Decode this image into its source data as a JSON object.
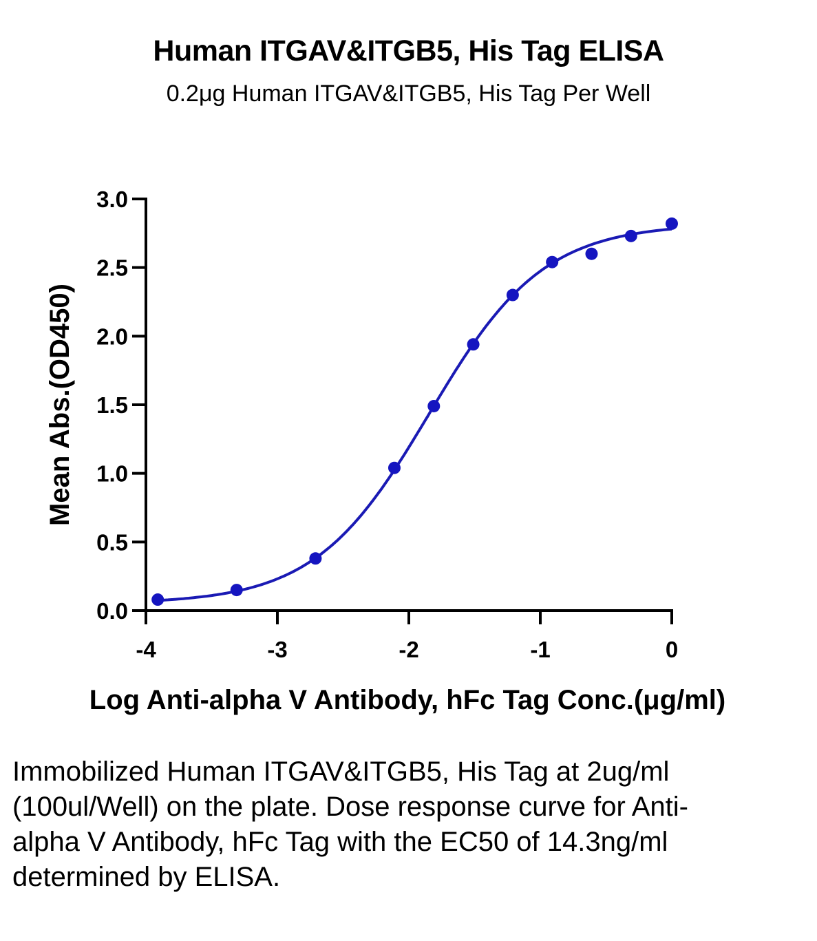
{
  "chart_data": {
    "type": "scatter",
    "title": "Human ITGAV&ITGB5, His Tag ELISA",
    "subtitle": "0.2μg Human ITGAV&ITGB5, His Tag Per Well",
    "xlabel": "Log Anti-alpha V Antibody, hFc Tag Conc.(μg/ml)",
    "ylabel": "Mean Abs.(OD450)",
    "xlim": [
      -4,
      0
    ],
    "ylim": [
      0,
      3
    ],
    "x_ticks": [
      "-4",
      "-3",
      "-2",
      "-1",
      "0"
    ],
    "y_ticks": [
      "0.0",
      "0.5",
      "1.0",
      "1.5",
      "2.0",
      "2.5",
      "3.0"
    ],
    "series": [
      {
        "x": [
          -3.91,
          -3.31,
          -2.71,
          -2.11,
          -1.81,
          -1.51,
          -1.21,
          -0.91,
          -0.61,
          -0.31,
          0.0
        ],
        "y": [
          0.08,
          0.15,
          0.38,
          1.04,
          1.49,
          1.94,
          2.3,
          2.54,
          2.6,
          2.73,
          2.82
        ],
        "color": "#1515c0"
      }
    ],
    "fit": {
      "bottom": 0.05,
      "top": 2.82,
      "logEC50": -1.845,
      "hill": 1.0,
      "color": "#1a1ab4"
    },
    "grid": false
  },
  "caption": "Immobilized Human ITGAV&ITGB5, His Tag at 2ug/ml (100ul/Well) on the plate. Dose response curve for Anti-alpha V Antibody, hFc Tag with the EC50 of 14.3ng/ml determined by ELISA."
}
